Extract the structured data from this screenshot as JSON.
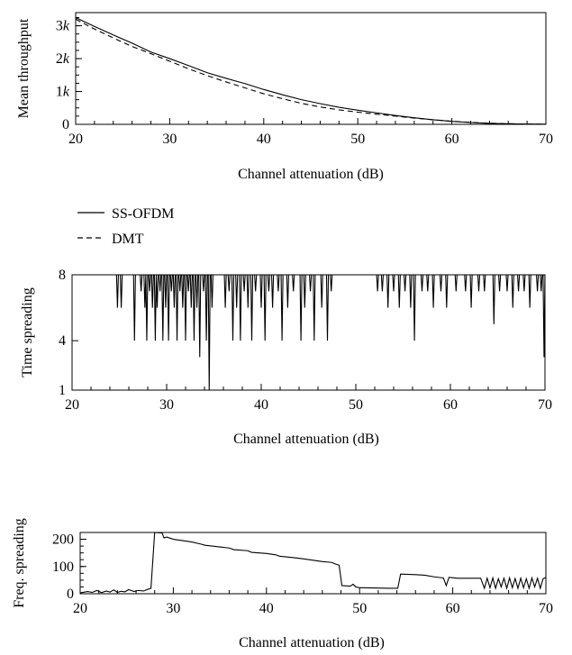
{
  "legend": [
    {
      "label": "SS-OFDM",
      "style": "solid"
    },
    {
      "label": "DMT",
      "style": "dashed"
    }
  ],
  "chart_data": [
    {
      "type": "line",
      "ylabel": "Mean throughput",
      "xlabel": "Channel attenuation (dB)",
      "xlim": [
        20,
        70
      ],
      "ylim": [
        0,
        3400
      ],
      "x_ticks": [
        "20",
        "30",
        "40",
        "50",
        "60",
        "70"
      ],
      "y_ticks": [
        {
          "value": 0,
          "label": "0"
        },
        {
          "value": 1000,
          "label": "1k"
        },
        {
          "value": 2000,
          "label": "2k"
        },
        {
          "value": 3000,
          "label": "3k"
        }
      ],
      "y_minor_step": 250,
      "series": [
        {
          "name": "SS-OFDM",
          "style": "solid",
          "x": [
            20,
            22,
            24,
            26,
            28,
            30,
            32,
            34,
            36,
            38,
            40,
            42,
            44,
            46,
            48,
            50,
            52,
            54,
            56,
            58,
            60,
            62,
            64,
            66,
            68,
            70
          ],
          "y": [
            3250,
            2980,
            2720,
            2470,
            2200,
            2000,
            1790,
            1570,
            1400,
            1240,
            1060,
            900,
            750,
            630,
            520,
            430,
            350,
            270,
            200,
            140,
            90,
            55,
            30,
            15,
            8,
            5
          ]
        },
        {
          "name": "DMT",
          "style": "dashed",
          "x": [
            20,
            22,
            24,
            26,
            28,
            30,
            32,
            34,
            36,
            38,
            40,
            42,
            44,
            46,
            48,
            50,
            52,
            54,
            56,
            58,
            60,
            62,
            64,
            66,
            68,
            70
          ],
          "y": [
            3200,
            2900,
            2630,
            2370,
            2150,
            1920,
            1690,
            1480,
            1290,
            1110,
            930,
            780,
            640,
            530,
            440,
            370,
            310,
            250,
            190,
            140,
            95,
            60,
            35,
            18,
            8,
            4
          ]
        }
      ]
    },
    {
      "type": "line",
      "ylabel": "Time spreading",
      "xlabel": "Channel attenuation (dB)",
      "xlim": [
        20,
        70
      ],
      "ylim": [
        1,
        8
      ],
      "x_ticks": [
        "20",
        "30",
        "40",
        "50",
        "60",
        "70"
      ],
      "y_ticks": [
        {
          "value": 1,
          "label": "1"
        },
        {
          "value": 4,
          "label": "4"
        },
        {
          "value": 8,
          "label": "8"
        }
      ],
      "baseline": 8,
      "series": [
        {
          "name": "",
          "style": "solid",
          "dips": [
            [
              24.8,
              6
            ],
            [
              25.2,
              6
            ],
            [
              26.6,
              4
            ],
            [
              27.3,
              7
            ],
            [
              27.7,
              6
            ],
            [
              27.9,
              4
            ],
            [
              28.2,
              7
            ],
            [
              28.5,
              6
            ],
            [
              28.8,
              4
            ],
            [
              29.0,
              6
            ],
            [
              29.3,
              7
            ],
            [
              29.6,
              4
            ],
            [
              29.9,
              6
            ],
            [
              30.2,
              4
            ],
            [
              30.5,
              7
            ],
            [
              30.8,
              6
            ],
            [
              31.1,
              4
            ],
            [
              31.4,
              7
            ],
            [
              31.7,
              6
            ],
            [
              32.0,
              4
            ],
            [
              32.3,
              7
            ],
            [
              32.6,
              6
            ],
            [
              32.9,
              4
            ],
            [
              33.2,
              6
            ],
            [
              33.5,
              3
            ],
            [
              33.9,
              7
            ],
            [
              34.2,
              4
            ],
            [
              34.5,
              1
            ],
            [
              34.8,
              6
            ],
            [
              36.2,
              6
            ],
            [
              36.6,
              7
            ],
            [
              37.0,
              4
            ],
            [
              37.4,
              6
            ],
            [
              37.8,
              4
            ],
            [
              38.2,
              7
            ],
            [
              38.6,
              6
            ],
            [
              39.0,
              4
            ],
            [
              39.4,
              7
            ],
            [
              40.0,
              6
            ],
            [
              40.4,
              4
            ],
            [
              40.8,
              7
            ],
            [
              41.2,
              6
            ],
            [
              41.8,
              7
            ],
            [
              42.2,
              4
            ],
            [
              42.8,
              6
            ],
            [
              43.4,
              7
            ],
            [
              44.2,
              4
            ],
            [
              44.6,
              6
            ],
            [
              45.2,
              7
            ],
            [
              45.6,
              4
            ],
            [
              46.4,
              6
            ],
            [
              47.0,
              4
            ],
            [
              47.4,
              7
            ],
            [
              52.3,
              7
            ],
            [
              52.8,
              7
            ],
            [
              53.4,
              6
            ],
            [
              54.0,
              7
            ],
            [
              54.6,
              6
            ],
            [
              55.2,
              7
            ],
            [
              55.8,
              6
            ],
            [
              56.2,
              4
            ],
            [
              57.0,
              7
            ],
            [
              57.6,
              7
            ],
            [
              58.2,
              6
            ],
            [
              59.0,
              7
            ],
            [
              59.6,
              6
            ],
            [
              60.6,
              7
            ],
            [
              61.6,
              7
            ],
            [
              62.2,
              6
            ],
            [
              63.0,
              7
            ],
            [
              63.6,
              7
            ],
            [
              64.6,
              5
            ],
            [
              65.2,
              7
            ],
            [
              66.0,
              7
            ],
            [
              66.6,
              6
            ],
            [
              67.2,
              7
            ],
            [
              67.8,
              7
            ],
            [
              68.4,
              6
            ],
            [
              69.2,
              7
            ],
            [
              69.6,
              7
            ],
            [
              69.9,
              3
            ]
          ]
        }
      ]
    },
    {
      "type": "line",
      "ylabel": "Freq. spreading",
      "xlabel": "Channel attenuation (dB)",
      "xlim": [
        20,
        70
      ],
      "ylim": [
        0,
        225
      ],
      "x_ticks": [
        "20",
        "30",
        "40",
        "50",
        "60",
        "70"
      ],
      "y_ticks": [
        {
          "value": 0,
          "label": "0"
        },
        {
          "value": 100,
          "label": "100"
        },
        {
          "value": 200,
          "label": "200"
        }
      ],
      "y_minor_step": 25,
      "series": [
        {
          "name": "",
          "style": "solid",
          "x": [
            20.0,
            20.8,
            21.3,
            21.8,
            22.3,
            22.8,
            23.2,
            23.6,
            24.0,
            24.4,
            24.8,
            25.2,
            25.8,
            26.2,
            26.8,
            27.4,
            27.6,
            28.0,
            28.8,
            29.0,
            29.3,
            30.0,
            31.0,
            32.0,
            33.0,
            33.4,
            35.0,
            36.0,
            36.5,
            38.0,
            38.4,
            40.0,
            41.0,
            41.4,
            43.0,
            44.0,
            45.0,
            46.0,
            47.0,
            47.5,
            47.8,
            48.1,
            49.0,
            49.3,
            49.6,
            50.0,
            52.0,
            53.0,
            54.1,
            54.4,
            56.0,
            57.0,
            58.0,
            58.5,
            59.0,
            59.3,
            59.6,
            60.2,
            60.5,
            63.0,
            63.4,
            63.7,
            64.0,
            64.3,
            64.6,
            64.9,
            65.2,
            65.5,
            65.8,
            66.1,
            66.4,
            66.7,
            67.0,
            67.3,
            67.6,
            67.9,
            68.2,
            68.5,
            68.8,
            69.1,
            69.4,
            69.7,
            70.0
          ],
          "y": [
            3,
            8,
            5,
            12,
            4,
            10,
            6,
            14,
            5,
            9,
            7,
            15,
            8,
            12,
            10,
            18,
            20,
            225,
            223,
            205,
            208,
            200,
            195,
            190,
            182,
            178,
            172,
            168,
            162,
            158,
            152,
            148,
            143,
            138,
            132,
            128,
            123,
            118,
            115,
            108,
            105,
            30,
            28,
            35,
            25,
            22,
            21,
            20,
            20,
            72,
            70,
            68,
            62,
            60,
            58,
            30,
            60,
            58,
            57,
            57,
            20,
            57,
            22,
            58,
            20,
            55,
            25,
            57,
            20,
            58,
            22,
            56,
            20,
            57,
            22,
            55,
            20,
            58,
            25,
            57,
            20,
            55,
            60
          ]
        }
      ]
    }
  ]
}
